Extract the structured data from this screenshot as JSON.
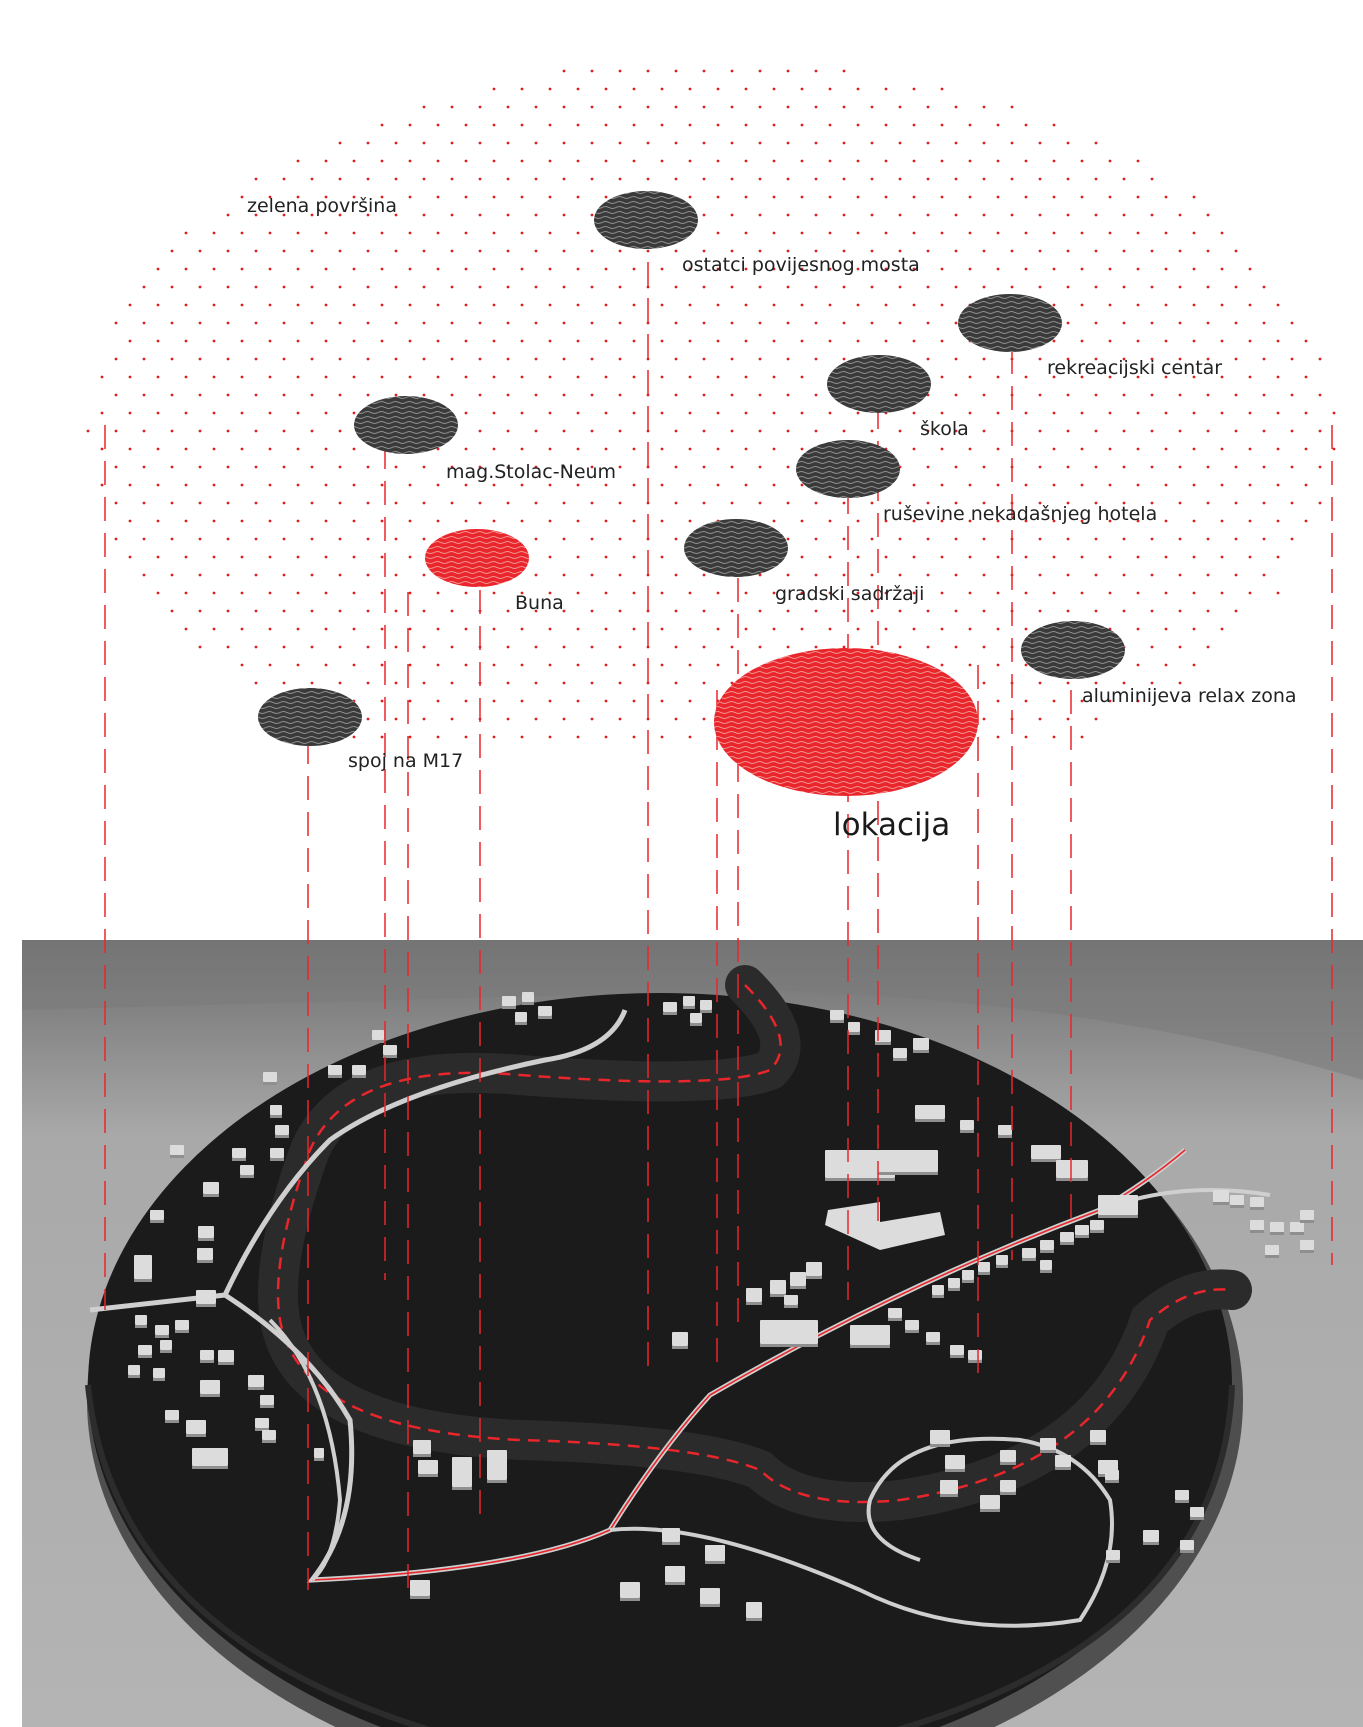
{
  "diagram": {
    "nodes": [
      {
        "id": "zelena-povrsina",
        "label": "zelena površina",
        "marker": "none"
      },
      {
        "id": "ostatci-povijesnog-mosta",
        "label": "ostatci povijesnog mosta",
        "marker": "gray"
      },
      {
        "id": "rekreacijski-centar",
        "label": "rekreacijski centar",
        "marker": "gray"
      },
      {
        "id": "skola",
        "label": "škola",
        "marker": "gray"
      },
      {
        "id": "mag-stolac-neum",
        "label": "mag.Stolac-Neum",
        "marker": "gray"
      },
      {
        "id": "rusevine-hotela",
        "label": "ruševine nekadašnjeg hotela",
        "marker": "gray"
      },
      {
        "id": "buna",
        "label": "Buna",
        "marker": "red"
      },
      {
        "id": "gradski-sadrzaji",
        "label": "gradski sadržaji",
        "marker": "gray"
      },
      {
        "id": "aluminijeva-relax-zona",
        "label": "aluminijeva relax zona",
        "marker": "gray"
      },
      {
        "id": "spoj-na-m17",
        "label": "spoj na M17",
        "marker": "gray"
      },
      {
        "id": "lokacija",
        "label": "lokacija",
        "marker": "red-large"
      }
    ],
    "colors": {
      "accent_red": "#e8262b",
      "marker_gray": "#3c3c3c",
      "dot_red": "#e02020",
      "photo_background": "#9d9d9d",
      "model_board": "#1b1b1b",
      "buildings": "#dcdcdc"
    }
  }
}
